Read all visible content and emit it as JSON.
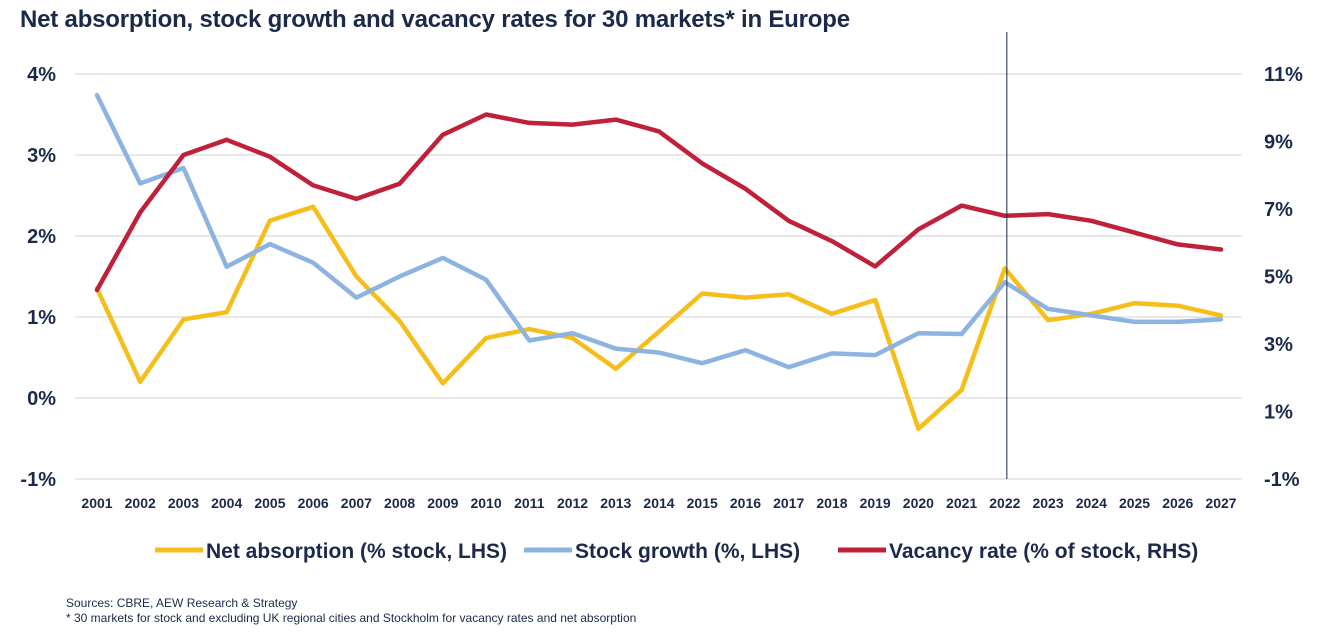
{
  "chart_data": {
    "type": "line",
    "title": "Net absorption, stock growth and vacancy rates for 30 markets* in Europe",
    "categories": [
      "2001",
      "2002",
      "2003",
      "2004",
      "2005",
      "2006",
      "2007",
      "2008",
      "2009",
      "2010",
      "2011",
      "2012",
      "2013",
      "2014",
      "2015",
      "2016",
      "2017",
      "2018",
      "2019",
      "2020",
      "2021",
      "2022",
      "2023",
      "2024",
      "2025",
      "2026",
      "2027"
    ],
    "left_axis": {
      "ylim": [
        -1,
        4
      ],
      "ticks": [
        -1,
        0,
        1,
        2,
        3,
        4
      ],
      "tick_labels": [
        "-1%",
        "0%",
        "1%",
        "2%",
        "3%",
        "4%"
      ]
    },
    "right_axis": {
      "ylim": [
        -1,
        11
      ],
      "ticks": [
        -1,
        1,
        3,
        5,
        7,
        9,
        11
      ],
      "tick_labels": [
        "-1%",
        "1%",
        "3%",
        "5%",
        "7%",
        "9%",
        "11%"
      ]
    },
    "forecast_marker": "2022",
    "legend_position": "bottom",
    "series": [
      {
        "name": "Net absorption (% stock, LHS)",
        "axis": "left",
        "color": "#f6be1a",
        "values": [
          1.35,
          0.2,
          0.97,
          1.06,
          2.19,
          2.36,
          1.5,
          0.95,
          0.18,
          0.74,
          0.85,
          0.74,
          0.36,
          0.82,
          1.29,
          1.24,
          1.28,
          1.04,
          1.21,
          -0.38,
          0.1,
          1.6,
          0.96,
          1.04,
          1.17,
          1.14,
          1.02
        ]
      },
      {
        "name": "Stock growth (%, LHS)",
        "axis": "left",
        "color": "#8db4e0",
        "values": [
          3.74,
          2.65,
          2.84,
          1.62,
          1.9,
          1.67,
          1.24,
          1.5,
          1.73,
          1.46,
          0.71,
          0.8,
          0.61,
          0.56,
          0.43,
          0.59,
          0.38,
          0.55,
          0.53,
          0.8,
          0.79,
          1.43,
          1.1,
          1.02,
          0.94,
          0.94,
          0.97
        ]
      },
      {
        "name": "Vacancy rate (% of stock, RHS)",
        "axis": "right",
        "color": "#c0213a",
        "values": [
          4.6,
          6.9,
          8.6,
          9.05,
          8.55,
          7.7,
          7.3,
          7.75,
          9.2,
          9.8,
          9.55,
          9.5,
          9.65,
          9.3,
          8.35,
          7.6,
          6.65,
          6.05,
          5.3,
          6.4,
          7.1,
          6.8,
          6.85,
          6.65,
          6.3,
          5.95,
          5.8
        ]
      }
    ]
  },
  "footnotes": {
    "sources": "Sources: CBRE, AEW Research & Strategy",
    "note": "* 30 markets for stock and excluding UK regional cities and Stockholm for vacancy rates and net absorption"
  }
}
